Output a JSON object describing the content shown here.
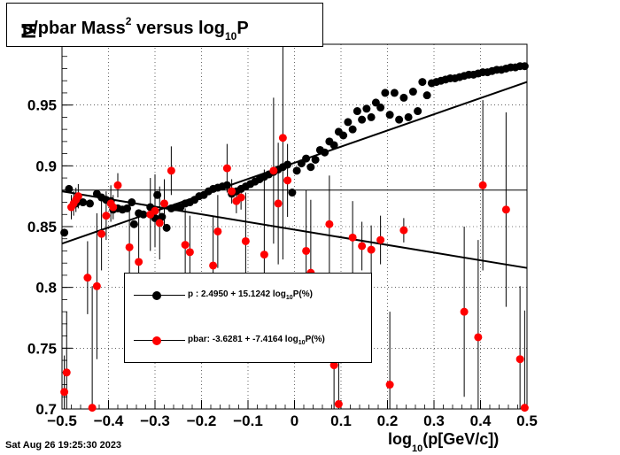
{
  "chart_data": {
    "type": "scatter",
    "title": {
      "prefix": "p/pbar Mass",
      "sup": "2",
      "mid": " versus log",
      "sub": "10",
      "suffix": "P"
    },
    "ylabel_fragment": "M",
    "xlabel": {
      "prefix": "log",
      "sub": "10",
      "suffix": "(p[GeV/c])"
    },
    "xlim": [
      -0.5,
      0.5
    ],
    "ylim": [
      0.7,
      1.0
    ],
    "x_ticks": [
      "-0.5",
      "-0.4",
      "-0.3",
      "-0.2",
      "-0.1",
      "0",
      "0.1",
      "0.2",
      "0.3",
      "0.4",
      "0.5"
    ],
    "y_ticks": [
      "0.7",
      "0.75",
      "0.8",
      "0.85",
      "0.9",
      "0.95"
    ],
    "grid": true,
    "reference_line_y": 0.88,
    "series": [
      {
        "name": "p",
        "color": "#000000",
        "fit": {
          "x": [
            -0.5,
            0.5
          ],
          "y": [
            0.836,
            0.969
          ]
        },
        "points": [
          [
            -0.495,
            0.845
          ],
          [
            -0.485,
            0.881
          ],
          [
            -0.47,
            0.869
          ],
          [
            -0.455,
            0.87
          ],
          [
            -0.44,
            0.869
          ],
          [
            -0.425,
            0.877
          ],
          [
            -0.415,
            0.874
          ],
          [
            -0.405,
            0.872
          ],
          [
            -0.395,
            0.871
          ],
          [
            -0.39,
            0.864
          ],
          [
            -0.38,
            0.865
          ],
          [
            -0.37,
            0.864
          ],
          [
            -0.36,
            0.865
          ],
          [
            -0.35,
            0.87
          ],
          [
            -0.345,
            0.852
          ],
          [
            -0.335,
            0.861
          ],
          [
            -0.325,
            0.86
          ],
          [
            -0.31,
            0.866
          ],
          [
            -0.3,
            0.857
          ],
          [
            -0.295,
            0.876
          ],
          [
            -0.285,
            0.858
          ],
          [
            -0.275,
            0.849
          ],
          [
            -0.265,
            0.865
          ],
          [
            -0.255,
            0.866
          ],
          [
            -0.245,
            0.866
          ],
          [
            -0.235,
            0.869
          ],
          [
            -0.225,
            0.87
          ],
          [
            -0.215,
            0.872
          ],
          [
            -0.205,
            0.875
          ],
          [
            -0.195,
            0.876
          ],
          [
            -0.185,
            0.879
          ],
          [
            -0.175,
            0.881
          ],
          [
            -0.165,
            0.882
          ],
          [
            -0.155,
            0.883
          ],
          [
            -0.145,
            0.884
          ],
          [
            -0.135,
            0.877
          ],
          [
            -0.125,
            0.879
          ],
          [
            -0.115,
            0.881
          ],
          [
            -0.105,
            0.883
          ],
          [
            -0.095,
            0.885
          ],
          [
            -0.085,
            0.887
          ],
          [
            -0.075,
            0.889
          ],
          [
            -0.065,
            0.891
          ],
          [
            -0.055,
            0.893
          ],
          [
            -0.045,
            0.895
          ],
          [
            -0.035,
            0.897
          ],
          [
            -0.025,
            0.899
          ],
          [
            -0.015,
            0.901
          ],
          [
            -0.005,
            0.878
          ],
          [
            0.005,
            0.896
          ],
          [
            0.015,
            0.902
          ],
          [
            0.025,
            0.906
          ],
          [
            0.035,
            0.899
          ],
          [
            0.045,
            0.905
          ],
          [
            0.055,
            0.913
          ],
          [
            0.065,
            0.911
          ],
          [
            0.075,
            0.92
          ],
          [
            0.085,
            0.917
          ],
          [
            0.095,
            0.928
          ],
          [
            0.105,
            0.925
          ],
          [
            0.115,
            0.936
          ],
          [
            0.125,
            0.93
          ],
          [
            0.135,
            0.945
          ],
          [
            0.145,
            0.938
          ],
          [
            0.155,
            0.947
          ],
          [
            0.165,
            0.94
          ],
          [
            0.175,
            0.952
          ],
          [
            0.185,
            0.948
          ],
          [
            0.195,
            0.96
          ],
          [
            0.205,
            0.942
          ],
          [
            0.215,
            0.96
          ],
          [
            0.225,
            0.938
          ],
          [
            0.235,
            0.956
          ],
          [
            0.245,
            0.94
          ],
          [
            0.255,
            0.961
          ],
          [
            0.265,
            0.945
          ],
          [
            0.275,
            0.969
          ],
          [
            0.285,
            0.958
          ],
          [
            0.295,
            0.968
          ],
          [
            0.305,
            0.969
          ],
          [
            0.315,
            0.97
          ],
          [
            0.325,
            0.971
          ],
          [
            0.335,
            0.972
          ],
          [
            0.345,
            0.972
          ],
          [
            0.355,
            0.973
          ],
          [
            0.365,
            0.974
          ],
          [
            0.375,
            0.975
          ],
          [
            0.385,
            0.975
          ],
          [
            0.395,
            0.976
          ],
          [
            0.405,
            0.977
          ],
          [
            0.415,
            0.977
          ],
          [
            0.425,
            0.978
          ],
          [
            0.435,
            0.979
          ],
          [
            0.445,
            0.979
          ],
          [
            0.455,
            0.98
          ],
          [
            0.465,
            0.981
          ],
          [
            0.475,
            0.981
          ],
          [
            0.485,
            0.982
          ],
          [
            0.495,
            0.982
          ]
        ],
        "label_text": {
          "prefix": "p  : 2.4950 + 15.1242 log",
          "sub": "10",
          "suffix": "P(%)"
        }
      },
      {
        "name": "pbar",
        "color": "#ff0000",
        "fit": {
          "x": [
            -0.5,
            0.5
          ],
          "y": [
            0.879,
            0.816
          ]
        },
        "points": [
          [
            -0.495,
            0.714,
            0.03
          ],
          [
            -0.49,
            0.73,
            0.05
          ],
          [
            -0.48,
            0.866,
            0.01
          ],
          [
            -0.475,
            0.869,
            0.01
          ],
          [
            -0.47,
            0.872,
            0.01
          ],
          [
            -0.465,
            0.875,
            0.01
          ],
          [
            -0.445,
            0.808,
            0.03
          ],
          [
            -0.435,
            0.701,
            0.1
          ],
          [
            -0.425,
            0.801,
            0.06
          ],
          [
            -0.415,
            0.844,
            0.03
          ],
          [
            -0.405,
            0.859,
            0.02
          ],
          [
            -0.395,
            0.869,
            0.015
          ],
          [
            -0.39,
            0.866,
            0.01
          ],
          [
            -0.38,
            0.884,
            0.01
          ],
          [
            -0.355,
            0.833,
            0.03
          ],
          [
            -0.335,
            0.821,
            0.04
          ],
          [
            -0.31,
            0.86,
            0.03
          ],
          [
            -0.3,
            0.863,
            0.03
          ],
          [
            -0.29,
            0.853,
            0.03
          ],
          [
            -0.28,
            0.869,
            0.02
          ],
          [
            -0.265,
            0.896,
            0.02
          ],
          [
            -0.235,
            0.835,
            0.03
          ],
          [
            -0.225,
            0.829,
            0.03
          ],
          [
            -0.175,
            0.818,
            0.04
          ],
          [
            -0.165,
            0.846,
            0.03
          ],
          [
            -0.145,
            0.898,
            0.02
          ],
          [
            -0.135,
            0.879,
            0.01
          ],
          [
            -0.125,
            0.871,
            0.01
          ],
          [
            -0.115,
            0.874,
            0.01
          ],
          [
            -0.105,
            0.838,
            0.04
          ],
          [
            -0.065,
            0.827,
            0.07
          ],
          [
            -0.045,
            0.896,
            0.06
          ],
          [
            -0.035,
            0.869,
            0.05
          ],
          [
            -0.025,
            0.923,
            0.1
          ],
          [
            -0.015,
            0.888,
            0.03
          ],
          [
            0.025,
            0.83,
            0.05
          ],
          [
            0.035,
            0.812,
            0.06
          ],
          [
            0.075,
            0.852,
            0.04
          ],
          [
            0.085,
            0.736,
            0.05
          ],
          [
            0.095,
            0.704,
            0.06
          ],
          [
            0.125,
            0.841,
            0.03
          ],
          [
            0.145,
            0.834,
            0.02
          ],
          [
            0.165,
            0.831,
            0.02
          ],
          [
            0.185,
            0.839,
            0.02
          ],
          [
            0.205,
            0.72,
            0.06
          ],
          [
            0.235,
            0.847,
            0.01
          ],
          [
            0.365,
            0.78,
            0.07
          ],
          [
            0.395,
            0.759,
            0.08
          ],
          [
            0.405,
            0.884,
            0.07
          ],
          [
            0.455,
            0.864,
            0.08
          ],
          [
            0.485,
            0.741,
            0.06
          ],
          [
            0.495,
            0.701,
            0.08
          ]
        ],
        "label_text": {
          "prefix": "pbar: -3.6281 + -7.4164 log",
          "sub": "10",
          "suffix": "P(%)"
        }
      }
    ]
  },
  "timestamp": "Sat Aug 26 19:25:30 2023"
}
